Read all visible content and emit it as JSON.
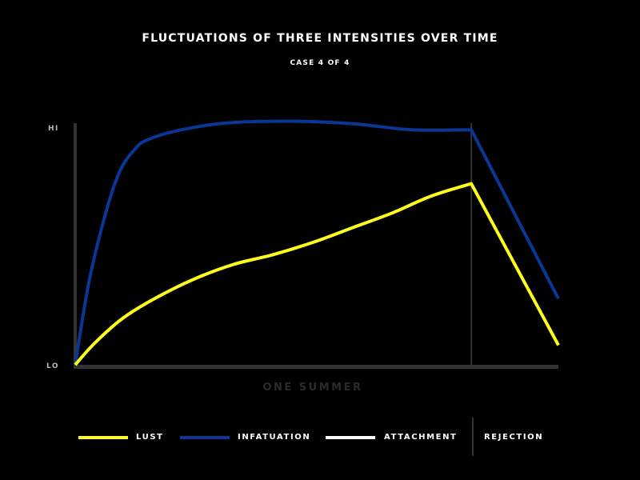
{
  "title": "FLUCTUATIONS OF THREE INTENSITIES OVER TIME",
  "subtitle": "CASE 4 OF 4",
  "chart_data": {
    "type": "line",
    "title": "FLUCTUATIONS OF THREE INTENSITIES OVER TIME",
    "subtitle": "CASE 4 OF 4",
    "xlabel": "ONE SUMMER",
    "ylabel": "",
    "y_tick_labels": {
      "hi": "HI",
      "lo": "LO"
    },
    "xlim": [
      0,
      1.22
    ],
    "ylim": [
      0,
      1
    ],
    "grid": false,
    "legend_position": "bottom",
    "event": {
      "name": "REJECTION",
      "x": 1.0
    },
    "series": [
      {
        "name": "LUST",
        "color": "#ffff1a",
        "points": [
          [
            0,
            0
          ],
          [
            0.05,
            0.09
          ],
          [
            0.12,
            0.19
          ],
          [
            0.2,
            0.27
          ],
          [
            0.3,
            0.35
          ],
          [
            0.4,
            0.41
          ],
          [
            0.5,
            0.45
          ],
          [
            0.6,
            0.5
          ],
          [
            0.7,
            0.56
          ],
          [
            0.8,
            0.62
          ],
          [
            0.9,
            0.69
          ],
          [
            1.0,
            0.74
          ],
          [
            1.22,
            0.08
          ]
        ]
      },
      {
        "name": "INFATUATION",
        "color": "#0a3696",
        "points": [
          [
            0,
            0
          ],
          [
            0.04,
            0.38
          ],
          [
            0.1,
            0.74
          ],
          [
            0.15,
            0.88
          ],
          [
            0.2,
            0.93
          ],
          [
            0.3,
            0.97
          ],
          [
            0.4,
            0.99
          ],
          [
            0.55,
            0.995
          ],
          [
            0.7,
            0.985
          ],
          [
            0.85,
            0.96
          ],
          [
            1.0,
            0.96
          ],
          [
            1.22,
            0.27
          ]
        ]
      },
      {
        "name": "ATTACHMENT",
        "color": "#ffffff",
        "points": [
          [
            0,
            0
          ],
          [
            1.22,
            0
          ]
        ]
      }
    ]
  },
  "legend": [
    {
      "label": "LUST",
      "color": "#ffff1a"
    },
    {
      "label": "INFATUATION",
      "color": "#0a3696"
    },
    {
      "label": "ATTACHMENT",
      "color": "#ffffff"
    },
    {
      "label": "REJECTION",
      "color": ""
    }
  ],
  "colors": {
    "axis": "#333333",
    "xlabel": "#2a2a2a",
    "ticks": "#bbbbbb"
  }
}
